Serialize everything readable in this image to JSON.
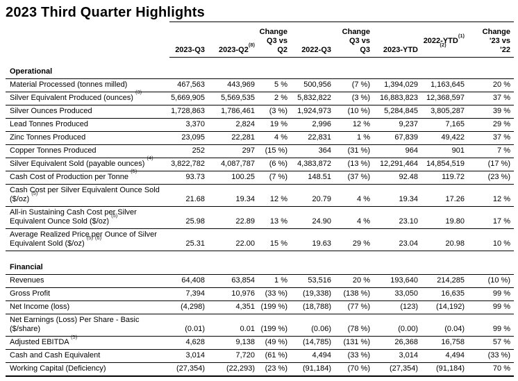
{
  "page": {
    "title": "2023 Third Quarter Highlights"
  },
  "colors": {
    "text": "#000000",
    "background": "#ffffff",
    "rule": "#000000"
  },
  "table": {
    "column_headers": [
      "2023-Q3",
      "2023-Q2(8)",
      "Change\nQ3 vs\nQ2",
      "2022-Q3",
      "Change\nQ3 vs\nQ3",
      "2023-YTD",
      "2022-YTD(1)\n(2)",
      "Change\n'23 vs\n'22"
    ],
    "sections": [
      {
        "name": "Operational",
        "rows": [
          {
            "label": "Material Processed (tonnes milled)",
            "values": [
              "467,563",
              "443,969",
              "5 %",
              "500,956",
              "(7 %)",
              "1,394,029",
              "1,163,645",
              "20 %"
            ]
          },
          {
            "label": "Silver Equivalent Produced (ounces) (3)",
            "values": [
              "5,669,905",
              "5,569,535",
              "2 %",
              "5,832,822",
              "(3 %)",
              "16,883,823",
              "12,368,597",
              "37 %"
            ]
          },
          {
            "label": "Silver Ounces Produced",
            "values": [
              "1,728,863",
              "1,786,461",
              "(3 %)",
              "1,924,973",
              "(10 %)",
              "5,284,845",
              "3,805,287",
              "39 %"
            ]
          },
          {
            "label": "Lead Tonnes Produced",
            "values": [
              "3,370",
              "2,824",
              "19 %",
              "2,996",
              "12 %",
              "9,237",
              "7,165",
              "29 %"
            ]
          },
          {
            "label": "Zinc Tonnes Produced",
            "values": [
              "23,095",
              "22,281",
              "4 %",
              "22,831",
              "1 %",
              "67,839",
              "49,422",
              "37 %"
            ]
          },
          {
            "label": "Copper Tonnes Produced",
            "values": [
              "252",
              "297",
              "(15 %)",
              "364",
              "(31 %)",
              "964",
              "901",
              "7 %"
            ]
          },
          {
            "label": "Silver Equivalent Sold (payable ounces) (4)",
            "values": [
              "3,822,782",
              "4,087,787",
              "(6 %)",
              "4,383,872",
              "(13 %)",
              "12,291,464",
              "14,854,519",
              "(17 %)"
            ]
          },
          {
            "label": "Cash Cost of Production per Tonne (5)",
            "values": [
              "93.73",
              "100.25",
              "(7 %)",
              "148.51",
              "(37 %)",
              "92.48",
              "119.72",
              "(23 %)"
            ]
          },
          {
            "label": "Cash Cost per Silver Equivalent Ounce Sold\n($/oz) (5)",
            "values": [
              "21.68",
              "19.34",
              "12 %",
              "20.79",
              "4 %",
              "19.34",
              "17.26",
              "12 %"
            ]
          },
          {
            "label": "All-in Sustaining Cash Cost per Silver\nEquivalent Ounce Sold ($/oz) (5)",
            "values": [
              "25.98",
              "22.89",
              "13 %",
              "24.90",
              "4 %",
              "23.10",
              "19.80",
              "17 %"
            ]
          },
          {
            "label": "Average Realized Price per Ounce of Silver\nEquivalent Sold ($/oz) (5) (6)",
            "values": [
              "25.31",
              "22.00",
              "15 %",
              "19.63",
              "29 %",
              "23.04",
              "20.98",
              "10 %"
            ]
          }
        ]
      },
      {
        "name": "Financial",
        "rows": [
          {
            "label": "Revenues",
            "values": [
              "64,408",
              "63,854",
              "1 %",
              "53,516",
              "20 %",
              "193,640",
              "214,285",
              "(10 %)"
            ]
          },
          {
            "label": "Gross Profit",
            "values": [
              "7,394",
              "10,976",
              "(33 %)",
              "(19,338)",
              "(138 %)",
              "33,050",
              "16,635",
              "99 %"
            ]
          },
          {
            "label": "Net Income (loss)",
            "values": [
              "(4,298)",
              "4,351",
              "(199 %)",
              "(18,788)",
              "(77 %)",
              "(123)",
              "(14,192)",
              "99 %"
            ]
          },
          {
            "label": "Net Earnings (Loss) Per Share - Basic\n($/share)",
            "values": [
              "(0.01)",
              "0.01",
              "(199 %)",
              "(0.06)",
              "(78 %)",
              "(0.00)",
              "(0.04)",
              "99 %"
            ]
          },
          {
            "label": "Adjusted EBITDA (5)",
            "values": [
              "4,628",
              "9,138",
              "(49 %)",
              "(14,785)",
              "(131 %)",
              "26,368",
              "16,758",
              "57 %"
            ]
          },
          {
            "label": "Cash and Cash Equivalent",
            "values": [
              "3,014",
              "7,720",
              "(61 %)",
              "4,494",
              "(33 %)",
              "3,014",
              "4,494",
              "(33 %)"
            ]
          },
          {
            "label": "Working Capital (Deficiency)",
            "values": [
              "(27,354)",
              "(22,293)",
              "(23 %)",
              "(91,184)",
              "(70 %)",
              "(27,354)",
              "(91,184)",
              "70 %"
            ]
          }
        ]
      }
    ]
  }
}
